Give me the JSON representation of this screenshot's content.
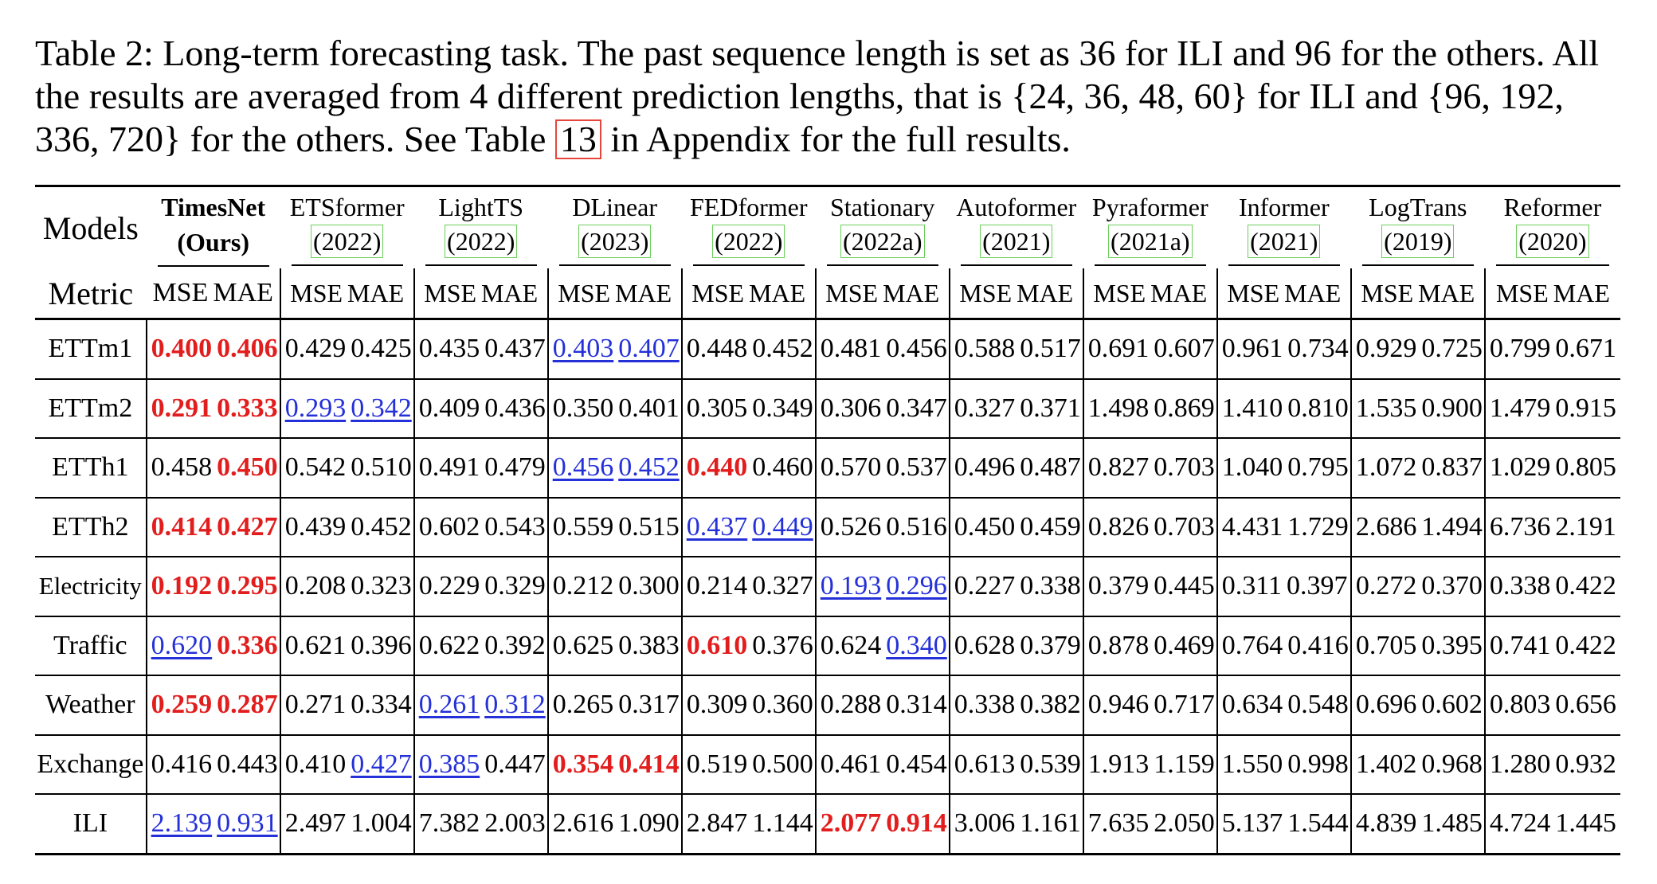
{
  "caption": {
    "text_before_ref": "Table 2: Long-term forecasting task. The past sequence length is set as 36 for ILI and 96 for the others. All the results are averaged from 4 different prediction lengths, that is {24, 36, 48, 60} for ILI and {96, 192, 336, 720} for the others. See Table ",
    "ref": "13",
    "text_after_ref": " in Appendix for the full results."
  },
  "header": {
    "models_label": "Models",
    "metric_label": "Metric",
    "mse_label": "MSE",
    "mae_label": "MAE",
    "models": [
      {
        "name": "TimesNet",
        "sub": "(Ours)",
        "ours": true
      },
      {
        "name": "ETSformer",
        "sub": "(2022)"
      },
      {
        "name": "LightTS",
        "sub": "(2022)"
      },
      {
        "name": "DLinear",
        "sub": "(2023)"
      },
      {
        "name": "FEDformer",
        "sub": "(2022)"
      },
      {
        "name": "Stationary",
        "sub": "(2022a)"
      },
      {
        "name": "Autoformer",
        "sub": "(2021)"
      },
      {
        "name": "Pyraformer",
        "sub": "(2021a)"
      },
      {
        "name": "Informer",
        "sub": "(2021)"
      },
      {
        "name": "LogTrans",
        "sub": "(2019)"
      },
      {
        "name": "Reformer",
        "sub": "(2020)"
      }
    ]
  },
  "rows": [
    {
      "dataset": "ETTm1",
      "values": [
        [
          "0.400",
          "0.406"
        ],
        [
          "0.429",
          "0.425"
        ],
        [
          "0.435",
          "0.437"
        ],
        [
          "0.403",
          "0.407"
        ],
        [
          "0.448",
          "0.452"
        ],
        [
          "0.481",
          "0.456"
        ],
        [
          "0.588",
          "0.517"
        ],
        [
          "0.691",
          "0.607"
        ],
        [
          "0.961",
          "0.734"
        ],
        [
          "0.929",
          "0.725"
        ],
        [
          "0.799",
          "0.671"
        ]
      ],
      "marks": [
        [
          "best",
          "best"
        ],
        [
          "",
          ""
        ],
        [
          "",
          ""
        ],
        [
          "second",
          "second"
        ],
        [
          "",
          ""
        ],
        [
          "",
          ""
        ],
        [
          "",
          ""
        ],
        [
          "",
          ""
        ],
        [
          "",
          ""
        ],
        [
          "",
          ""
        ],
        [
          "",
          ""
        ]
      ]
    },
    {
      "dataset": "ETTm2",
      "values": [
        [
          "0.291",
          "0.333"
        ],
        [
          "0.293",
          "0.342"
        ],
        [
          "0.409",
          "0.436"
        ],
        [
          "0.350",
          "0.401"
        ],
        [
          "0.305",
          "0.349"
        ],
        [
          "0.306",
          "0.347"
        ],
        [
          "0.327",
          "0.371"
        ],
        [
          "1.498",
          "0.869"
        ],
        [
          "1.410",
          "0.810"
        ],
        [
          "1.535",
          "0.900"
        ],
        [
          "1.479",
          "0.915"
        ]
      ],
      "marks": [
        [
          "best",
          "best"
        ],
        [
          "second",
          "second"
        ],
        [
          "",
          ""
        ],
        [
          "",
          ""
        ],
        [
          "",
          ""
        ],
        [
          "",
          ""
        ],
        [
          "",
          ""
        ],
        [
          "",
          ""
        ],
        [
          "",
          ""
        ],
        [
          "",
          ""
        ],
        [
          "",
          ""
        ]
      ]
    },
    {
      "dataset": "ETTh1",
      "values": [
        [
          "0.458",
          "0.450"
        ],
        [
          "0.542",
          "0.510"
        ],
        [
          "0.491",
          "0.479"
        ],
        [
          "0.456",
          "0.452"
        ],
        [
          "0.440",
          "0.460"
        ],
        [
          "0.570",
          "0.537"
        ],
        [
          "0.496",
          "0.487"
        ],
        [
          "0.827",
          "0.703"
        ],
        [
          "1.040",
          "0.795"
        ],
        [
          "1.072",
          "0.837"
        ],
        [
          "1.029",
          "0.805"
        ]
      ],
      "marks": [
        [
          "",
          "best"
        ],
        [
          "",
          ""
        ],
        [
          "",
          ""
        ],
        [
          "second",
          "second"
        ],
        [
          "best",
          ""
        ],
        [
          "",
          ""
        ],
        [
          "",
          ""
        ],
        [
          "",
          ""
        ],
        [
          "",
          ""
        ],
        [
          "",
          ""
        ],
        [
          "",
          ""
        ]
      ]
    },
    {
      "dataset": "ETTh2",
      "values": [
        [
          "0.414",
          "0.427"
        ],
        [
          "0.439",
          "0.452"
        ],
        [
          "0.602",
          "0.543"
        ],
        [
          "0.559",
          "0.515"
        ],
        [
          "0.437",
          "0.449"
        ],
        [
          "0.526",
          "0.516"
        ],
        [
          "0.450",
          "0.459"
        ],
        [
          "0.826",
          "0.703"
        ],
        [
          "4.431",
          "1.729"
        ],
        [
          "2.686",
          "1.494"
        ],
        [
          "6.736",
          "2.191"
        ]
      ],
      "marks": [
        [
          "best",
          "best"
        ],
        [
          "",
          ""
        ],
        [
          "",
          ""
        ],
        [
          "",
          ""
        ],
        [
          "second",
          "second"
        ],
        [
          "",
          ""
        ],
        [
          "",
          ""
        ],
        [
          "",
          ""
        ],
        [
          "",
          ""
        ],
        [
          "",
          ""
        ],
        [
          "",
          ""
        ]
      ]
    },
    {
      "dataset": "Electricity",
      "values": [
        [
          "0.192",
          "0.295"
        ],
        [
          "0.208",
          "0.323"
        ],
        [
          "0.229",
          "0.329"
        ],
        [
          "0.212",
          "0.300"
        ],
        [
          "0.214",
          "0.327"
        ],
        [
          "0.193",
          "0.296"
        ],
        [
          "0.227",
          "0.338"
        ],
        [
          "0.379",
          "0.445"
        ],
        [
          "0.311",
          "0.397"
        ],
        [
          "0.272",
          "0.370"
        ],
        [
          "0.338",
          "0.422"
        ]
      ],
      "marks": [
        [
          "best",
          "best"
        ],
        [
          "",
          ""
        ],
        [
          "",
          ""
        ],
        [
          "",
          ""
        ],
        [
          "",
          ""
        ],
        [
          "second",
          "second"
        ],
        [
          "",
          ""
        ],
        [
          "",
          ""
        ],
        [
          "",
          ""
        ],
        [
          "",
          ""
        ],
        [
          "",
          ""
        ]
      ]
    },
    {
      "dataset": "Traffic",
      "values": [
        [
          "0.620",
          "0.336"
        ],
        [
          "0.621",
          "0.396"
        ],
        [
          "0.622",
          "0.392"
        ],
        [
          "0.625",
          "0.383"
        ],
        [
          "0.610",
          "0.376"
        ],
        [
          "0.624",
          "0.340"
        ],
        [
          "0.628",
          "0.379"
        ],
        [
          "0.878",
          "0.469"
        ],
        [
          "0.764",
          "0.416"
        ],
        [
          "0.705",
          "0.395"
        ],
        [
          "0.741",
          "0.422"
        ]
      ],
      "marks": [
        [
          "second",
          "best"
        ],
        [
          "",
          ""
        ],
        [
          "",
          ""
        ],
        [
          "",
          ""
        ],
        [
          "best",
          ""
        ],
        [
          "",
          "second"
        ],
        [
          "",
          ""
        ],
        [
          "",
          ""
        ],
        [
          "",
          ""
        ],
        [
          "",
          ""
        ],
        [
          "",
          ""
        ]
      ]
    },
    {
      "dataset": "Weather",
      "values": [
        [
          "0.259",
          "0.287"
        ],
        [
          "0.271",
          "0.334"
        ],
        [
          "0.261",
          "0.312"
        ],
        [
          "0.265",
          "0.317"
        ],
        [
          "0.309",
          "0.360"
        ],
        [
          "0.288",
          "0.314"
        ],
        [
          "0.338",
          "0.382"
        ],
        [
          "0.946",
          "0.717"
        ],
        [
          "0.634",
          "0.548"
        ],
        [
          "0.696",
          "0.602"
        ],
        [
          "0.803",
          "0.656"
        ]
      ],
      "marks": [
        [
          "best",
          "best"
        ],
        [
          "",
          ""
        ],
        [
          "second",
          "second"
        ],
        [
          "",
          ""
        ],
        [
          "",
          ""
        ],
        [
          "",
          ""
        ],
        [
          "",
          ""
        ],
        [
          "",
          ""
        ],
        [
          "",
          ""
        ],
        [
          "",
          ""
        ],
        [
          "",
          ""
        ]
      ]
    },
    {
      "dataset": "Exchange",
      "values": [
        [
          "0.416",
          "0.443"
        ],
        [
          "0.410",
          "0.427"
        ],
        [
          "0.385",
          "0.447"
        ],
        [
          "0.354",
          "0.414"
        ],
        [
          "0.519",
          "0.500"
        ],
        [
          "0.461",
          "0.454"
        ],
        [
          "0.613",
          "0.539"
        ],
        [
          "1.913",
          "1.159"
        ],
        [
          "1.550",
          "0.998"
        ],
        [
          "1.402",
          "0.968"
        ],
        [
          "1.280",
          "0.932"
        ]
      ],
      "marks": [
        [
          "",
          ""
        ],
        [
          "",
          "second"
        ],
        [
          "second",
          ""
        ],
        [
          "best",
          "best"
        ],
        [
          "",
          ""
        ],
        [
          "",
          ""
        ],
        [
          "",
          ""
        ],
        [
          "",
          ""
        ],
        [
          "",
          ""
        ],
        [
          "",
          ""
        ],
        [
          "",
          ""
        ]
      ]
    },
    {
      "dataset": "ILI",
      "values": [
        [
          "2.139",
          "0.931"
        ],
        [
          "2.497",
          "1.004"
        ],
        [
          "7.382",
          "2.003"
        ],
        [
          "2.616",
          "1.090"
        ],
        [
          "2.847",
          "1.144"
        ],
        [
          "2.077",
          "0.914"
        ],
        [
          "3.006",
          "1.161"
        ],
        [
          "7.635",
          "2.050"
        ],
        [
          "5.137",
          "1.544"
        ],
        [
          "4.839",
          "1.485"
        ],
        [
          "4.724",
          "1.445"
        ]
      ],
      "marks": [
        [
          "second",
          "second"
        ],
        [
          "",
          ""
        ],
        [
          "",
          ""
        ],
        [
          "",
          ""
        ],
        [
          "",
          ""
        ],
        [
          "best",
          "best"
        ],
        [
          "",
          ""
        ],
        [
          "",
          ""
        ],
        [
          "",
          ""
        ],
        [
          "",
          ""
        ],
        [
          "",
          ""
        ]
      ]
    }
  ],
  "colors": {
    "best": "#e21d1d",
    "second": "#2430d8",
    "ref_box": "#e8453c",
    "year_box": "#6ccf5a"
  }
}
